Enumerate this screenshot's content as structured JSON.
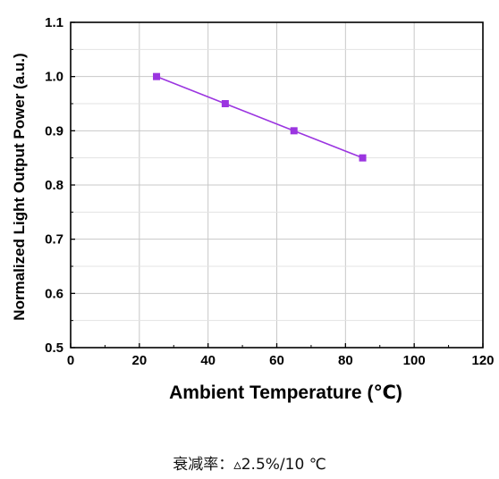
{
  "chart_data": {
    "type": "line",
    "x": [
      25,
      45,
      65,
      85
    ],
    "series": [
      {
        "values": [
          1.0,
          0.95,
          0.9,
          0.85
        ],
        "color": "#9b35e0",
        "marker": "square"
      }
    ],
    "xlabel": "Ambient Temperature (℃)",
    "ylabel": "Normalized Light Output Power (a.u.)",
    "xlim": [
      0,
      120
    ],
    "ylim": [
      0.5,
      1.1
    ],
    "xticks": [
      "0",
      "20",
      "40",
      "60",
      "80",
      "100",
      "120"
    ],
    "yticks": [
      "0.5",
      "0.6",
      "0.7",
      "0.8",
      "0.9",
      "1.0",
      "1.1"
    ],
    "grid": true
  },
  "caption": "衰减率：▵2.5%/10 ℃"
}
